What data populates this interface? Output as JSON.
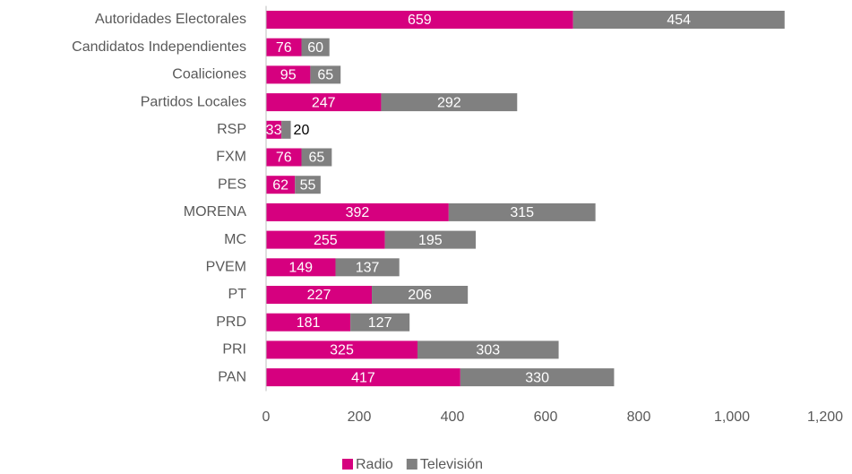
{
  "chart_data": {
    "type": "stacked-bar-horizontal",
    "categories": [
      "Autoridades Electorales",
      "Candidatos Independientes",
      "Coaliciones",
      "Partidos Locales",
      "RSP",
      "FXM",
      "PES",
      "MORENA",
      "MC",
      "PVEM",
      "PT",
      "PRD",
      "PRI",
      "PAN"
    ],
    "series": [
      {
        "name": "Radio",
        "color": "#d6007f",
        "values": [
          659,
          76,
          95,
          247,
          33,
          76,
          62,
          392,
          255,
          149,
          227,
          181,
          325,
          417
        ]
      },
      {
        "name": "Televisión",
        "color": "#808080",
        "values": [
          454,
          60,
          65,
          292,
          20,
          65,
          55,
          315,
          195,
          137,
          206,
          127,
          303,
          330
        ]
      }
    ],
    "xlim": [
      0,
      1200
    ],
    "xticks": [
      0,
      200,
      400,
      600,
      800,
      {
        "value": 1000,
        "label": "1,000"
      },
      {
        "value": 1200,
        "label": "1,200"
      }
    ],
    "grid": false,
    "legend": "bottom"
  }
}
